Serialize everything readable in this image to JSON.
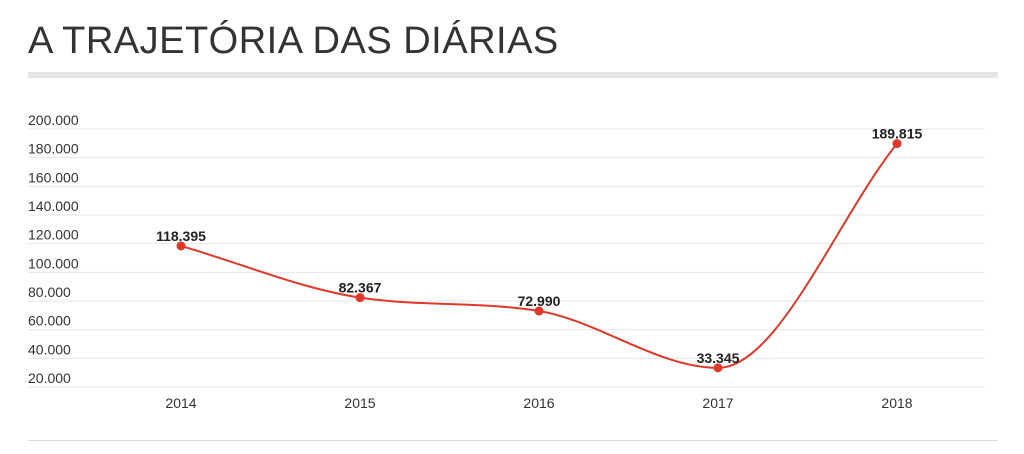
{
  "title": "A TRAJETÓRIA DAS DIÁRIAS",
  "colors": {
    "series": "#e0392b",
    "grid": "#e6e6e6",
    "title_rule": "#e5e5e5"
  },
  "chart_data": {
    "type": "line",
    "title": "A TRAJETÓRIA DAS DIÁRIAS",
    "xlabel": "",
    "ylabel": "",
    "categories": [
      "2014",
      "2015",
      "2016",
      "2017",
      "2018"
    ],
    "series": [
      {
        "values": [
          118395,
          82367,
          72990,
          33345,
          189815
        ],
        "data_labels": [
          "118.395",
          "82.367",
          "72.990",
          "33.345",
          "189.815"
        ],
        "color": "#e0392b",
        "smooth": true
      }
    ],
    "ylim": [
      10000,
      200000
    ],
    "y_ticks": [
      200000,
      180000,
      160000,
      140000,
      120000,
      100000,
      80000,
      60000,
      40000,
      20000
    ],
    "y_tick_labels": [
      "200.000",
      "180.000",
      "160.000",
      "140.000",
      "120.000",
      "100.000",
      "80.000",
      "60.000",
      "40.000",
      "20.000"
    ],
    "grid": true,
    "legend": "none"
  }
}
